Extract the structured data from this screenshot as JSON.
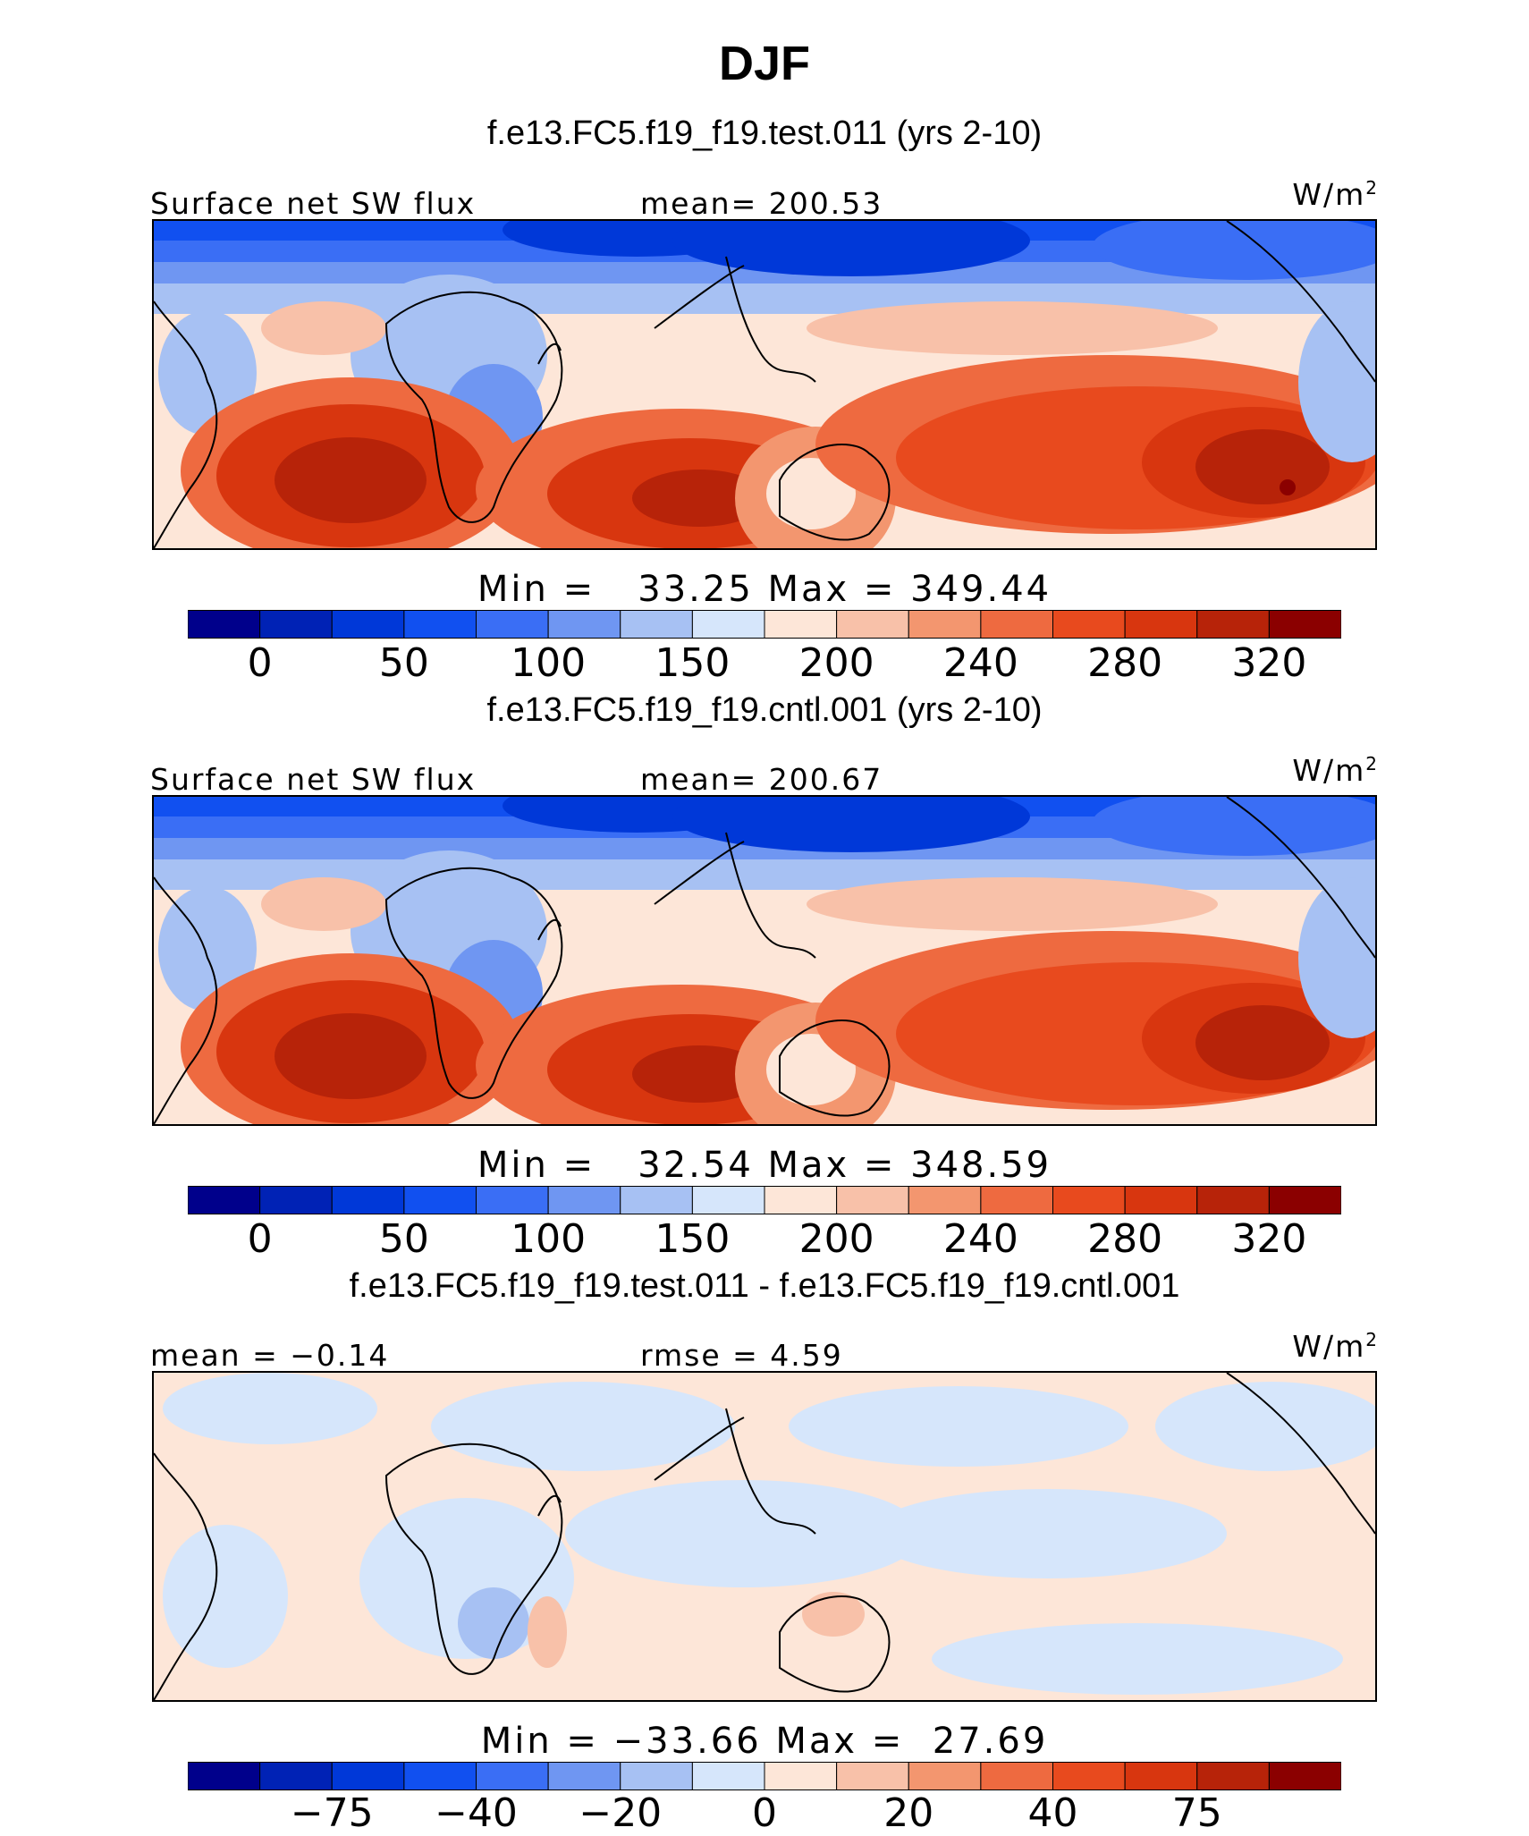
{
  "title": "DJF",
  "panels": [
    {
      "subtitle": "f.e13.FC5.f19_f19.test.011 (yrs 2-10)",
      "left_label": "Surface net SW flux",
      "center_label": "mean= 200.53",
      "units": "W/m",
      "units_sup": "2",
      "minmax": "Min =   33.25 Max = 349.44",
      "colorbar_ticks": [
        "0",
        "50",
        "100",
        "150",
        "200",
        "240",
        "280",
        "320"
      ],
      "field": "absolute"
    },
    {
      "subtitle": "f.e13.FC5.f19_f19.cntl.001 (yrs 2-10)",
      "left_label": "Surface net SW flux",
      "center_label": "mean= 200.67",
      "units": "W/m",
      "units_sup": "2",
      "minmax": "Min =   32.54 Max = 348.59",
      "colorbar_ticks": [
        "0",
        "50",
        "100",
        "150",
        "200",
        "240",
        "280",
        "320"
      ],
      "field": "absolute"
    },
    {
      "subtitle": "f.e13.FC5.f19_f19.test.011 - f.e13.FC5.f19_f19.cntl.001",
      "left_label": "mean =  −0.14",
      "center_label": "rmse =   4.59",
      "units": "W/m",
      "units_sup": "2",
      "minmax": "Min = −33.66 Max =  27.69",
      "colorbar_ticks": [
        "−75",
        "−40",
        "−20",
        "0",
        "20",
        "40",
        "75"
      ],
      "field": "difference"
    }
  ],
  "colors": {
    "palette": [
      "#00008b",
      "#0022b5",
      "#0038d8",
      "#1150f0",
      "#3a6ef5",
      "#6f96f2",
      "#a7c1f3",
      "#d6e6fb",
      "#fde6d8",
      "#f8c1a9",
      "#f3966f",
      "#ee6a40",
      "#e84a1e",
      "#d8360f",
      "#b72309",
      "#8b0000"
    ]
  }
}
